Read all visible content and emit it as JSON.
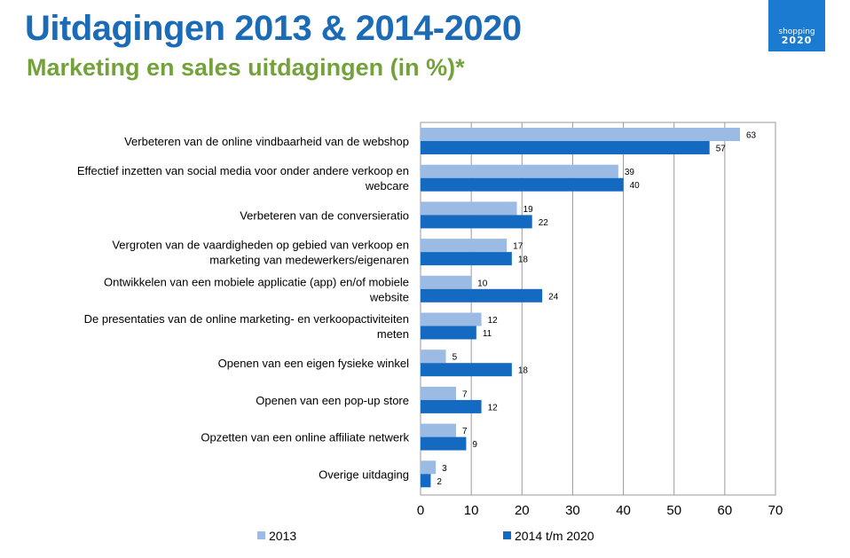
{
  "slide": {
    "title": "Uitdagingen 2013 & 2014-2020",
    "subtitle": "Marketing en sales uitdagingen (in %)*"
  },
  "logo": {
    "line1": "shopping",
    "line2": "2020"
  },
  "colors": {
    "series_2013": "#9bbbe5",
    "series_2014": "#1469c0",
    "title": "#1b6bb7",
    "subtitle": "#74a23a"
  },
  "chart_data": {
    "type": "bar",
    "orientation": "horizontal",
    "categories": [
      [
        "Verbeteren van de online vindbaarheid van de webshop"
      ],
      [
        "Effectief inzetten van social media voor onder andere verkoop en",
        "webcare"
      ],
      [
        "Verbeteren van de conversieratio"
      ],
      [
        "Vergroten van de vaardigheden op gebied van verkoop en",
        "marketing van medewerkers/eigenaren"
      ],
      [
        "Ontwikkelen van een mobiele applicatie (app) en/of mobiele",
        "website"
      ],
      [
        "De presentaties van de online marketing- en verkoopactiviteiten",
        "meten"
      ],
      [
        "Openen van een eigen fysieke winkel"
      ],
      [
        "Openen van een pop-up store"
      ],
      [
        "Opzetten van een online affiliate netwerk"
      ],
      [
        "Overige uitdaging"
      ]
    ],
    "series": [
      {
        "name": "2013",
        "values": [
          63,
          39,
          19,
          17,
          10,
          12,
          5,
          7,
          7,
          3
        ]
      },
      {
        "name": "2014 t/m 2020",
        "values": [
          57,
          40,
          22,
          18,
          24,
          11,
          18,
          12,
          9,
          2
        ]
      }
    ],
    "xlim": [
      0,
      70
    ],
    "xticks": [
      0,
      10,
      20,
      30,
      40,
      50,
      60,
      70
    ],
    "grid": true,
    "legend": "bottom",
    "data_labels": true
  }
}
